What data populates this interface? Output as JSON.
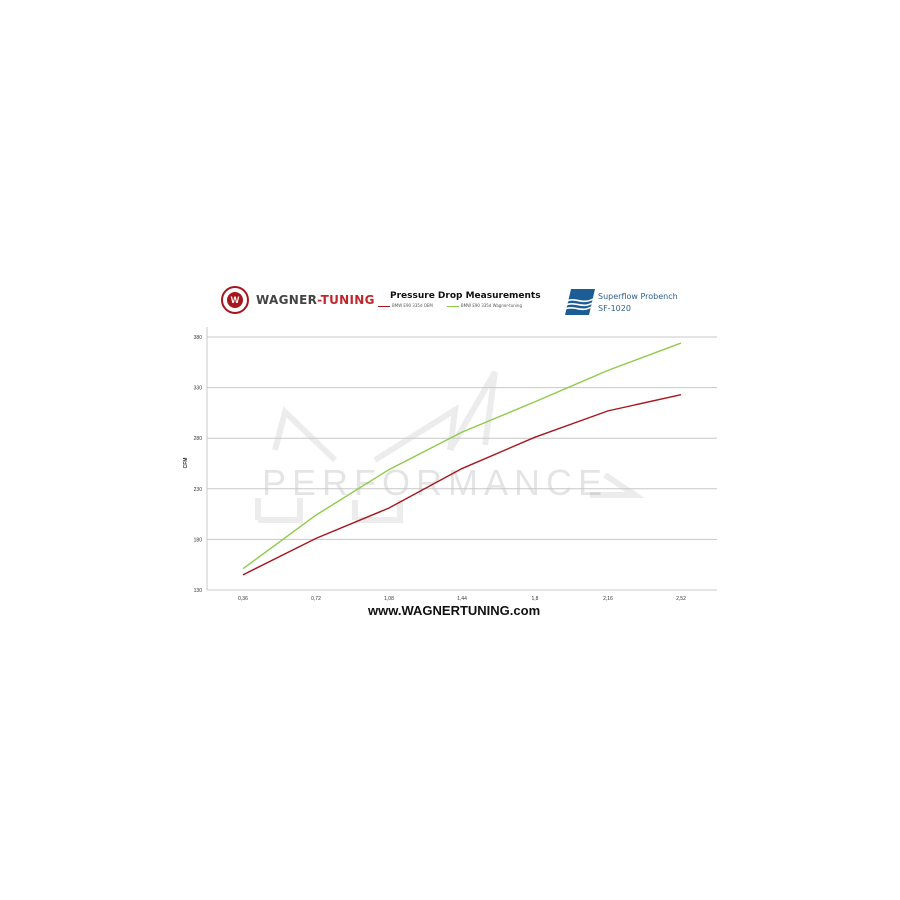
{
  "header": {
    "brand_logo_text": "WAGNER-TUNING",
    "brand_part1": "WAGNER",
    "brand_part2": "-TUNING",
    "bench_line1": "Superflow Probench",
    "bench_line2": "SF-1020",
    "watermark": "PERFORMANCE"
  },
  "footer": {
    "url": "www.WAGNERTUNING.com"
  },
  "chart_data": {
    "type": "line",
    "title": "Pressure Drop Measurements",
    "xlabel": "",
    "ylabel": "CFM",
    "x": [
      "0,36",
      "0,72",
      "1,08",
      "1,44",
      "1,8",
      "2,16",
      "2,52"
    ],
    "ylim": [
      130,
      380
    ],
    "yticks": [
      "130",
      "180",
      "230",
      "280",
      "330",
      "380"
    ],
    "grid": true,
    "legend": "top",
    "series": [
      {
        "name": "BMW E90 335d OEM",
        "color": "#a8161d",
        "values": [
          145,
          181,
          211,
          250,
          281,
          307,
          323
        ]
      },
      {
        "name": "BMW E90 335d Wagner-tuning",
        "color": "#8fcb4a",
        "values": [
          151,
          204,
          249,
          286,
          316,
          347,
          374
        ]
      }
    ]
  }
}
